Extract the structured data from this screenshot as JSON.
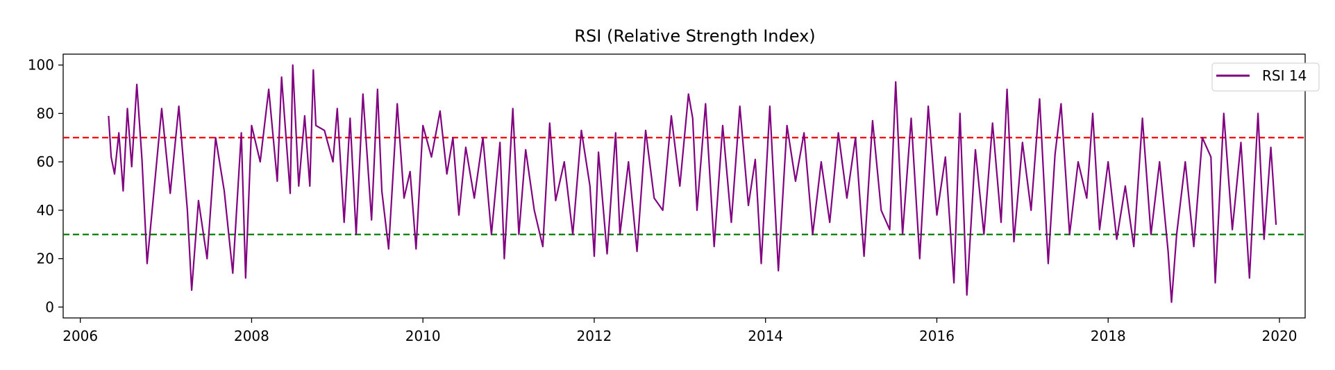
{
  "chart_data": {
    "type": "line",
    "title": "RSI (Relative Strength Index)",
    "xlabel": "",
    "ylabel": "",
    "xlim": [
      2005.8,
      2020.3
    ],
    "ylim": [
      -4.5,
      104.5
    ],
    "x_ticks": [
      2006,
      2008,
      2010,
      2012,
      2014,
      2016,
      2018,
      2020
    ],
    "y_ticks": [
      0,
      20,
      40,
      60,
      80,
      100
    ],
    "grid": false,
    "legend": {
      "position": "upper right",
      "entries": [
        "RSI 14"
      ]
    },
    "reference_lines": [
      {
        "y": 70,
        "color": "#ff0000",
        "style": "dashed"
      },
      {
        "y": 30,
        "color": "#008000",
        "style": "dashed"
      }
    ],
    "series": [
      {
        "name": "RSI 14",
        "color": "#800080",
        "x": [
          2006.33,
          2006.36,
          2006.4,
          2006.45,
          2006.5,
          2006.55,
          2006.6,
          2006.66,
          2006.72,
          2006.78,
          2006.86,
          2006.95,
          2007.05,
          2007.15,
          2007.25,
          2007.3,
          2007.38,
          2007.48,
          2007.58,
          2007.68,
          2007.78,
          2007.88,
          2007.93,
          2008.0,
          2008.1,
          2008.2,
          2008.3,
          2008.35,
          2008.45,
          2008.48,
          2008.55,
          2008.62,
          2008.68,
          2008.72,
          2008.75,
          2008.85,
          2008.95,
          2009.0,
          2009.08,
          2009.15,
          2009.22,
          2009.3,
          2009.4,
          2009.47,
          2009.52,
          2009.6,
          2009.7,
          2009.78,
          2009.85,
          2009.92,
          2010.0,
          2010.1,
          2010.2,
          2010.28,
          2010.35,
          2010.42,
          2010.5,
          2010.6,
          2010.7,
          2010.8,
          2010.9,
          2010.95,
          2011.05,
          2011.12,
          2011.2,
          2011.3,
          2011.4,
          2011.48,
          2011.55,
          2011.65,
          2011.75,
          2011.85,
          2011.95,
          2012.0,
          2012.05,
          2012.15,
          2012.25,
          2012.3,
          2012.4,
          2012.5,
          2012.6,
          2012.7,
          2012.8,
          2012.9,
          2013.0,
          2013.1,
          2013.15,
          2013.2,
          2013.3,
          2013.4,
          2013.5,
          2013.6,
          2013.7,
          2013.8,
          2013.88,
          2013.95,
          2014.05,
          2014.15,
          2014.25,
          2014.35,
          2014.45,
          2014.55,
          2014.65,
          2014.75,
          2014.85,
          2014.95,
          2015.05,
          2015.15,
          2015.25,
          2015.35,
          2015.45,
          2015.52,
          2015.6,
          2015.7,
          2015.8,
          2015.9,
          2016.0,
          2016.1,
          2016.2,
          2016.27,
          2016.35,
          2016.45,
          2016.55,
          2016.65,
          2016.75,
          2016.82,
          2016.9,
          2017.0,
          2017.1,
          2017.2,
          2017.3,
          2017.38,
          2017.45,
          2017.55,
          2017.65,
          2017.75,
          2017.82,
          2017.9,
          2018.0,
          2018.1,
          2018.2,
          2018.3,
          2018.4,
          2018.5,
          2018.6,
          2018.7,
          2018.74,
          2018.8,
          2018.9,
          2019.0,
          2019.1,
          2019.2,
          2019.25,
          2019.35,
          2019.45,
          2019.55,
          2019.65,
          2019.75,
          2019.82,
          2019.9,
          2019.96
        ],
        "y": [
          79,
          62,
          55,
          72,
          48,
          82,
          58,
          92,
          61,
          18,
          48,
          82,
          47,
          83,
          40,
          7,
          44,
          20,
          70,
          48,
          14,
          72,
          12,
          75,
          60,
          90,
          52,
          95,
          47,
          100,
          50,
          79,
          50,
          98,
          75,
          73,
          60,
          82,
          35,
          78,
          30,
          88,
          36,
          90,
          48,
          24,
          84,
          45,
          56,
          24,
          75,
          62,
          81,
          55,
          70,
          38,
          66,
          45,
          70,
          30,
          68,
          20,
          82,
          30,
          65,
          40,
          25,
          76,
          44,
          60,
          30,
          73,
          50,
          21,
          64,
          22,
          72,
          30,
          60,
          23,
          73,
          45,
          40,
          79,
          50,
          88,
          78,
          40,
          84,
          25,
          75,
          35,
          83,
          42,
          61,
          18,
          83,
          15,
          75,
          52,
          72,
          30,
          60,
          35,
          72,
          45,
          70,
          21,
          77,
          40,
          32,
          93,
          30,
          78,
          20,
          83,
          38,
          62,
          10,
          80,
          5,
          65,
          30,
          76,
          35,
          90,
          27,
          68,
          40,
          86,
          18,
          63,
          84,
          30,
          60,
          45,
          80,
          32,
          60,
          28,
          50,
          25,
          78,
          30,
          60,
          23,
          2,
          30,
          60,
          25,
          70,
          62,
          10,
          80,
          32,
          68,
          12,
          80,
          28,
          66,
          34
        ]
      }
    ]
  }
}
